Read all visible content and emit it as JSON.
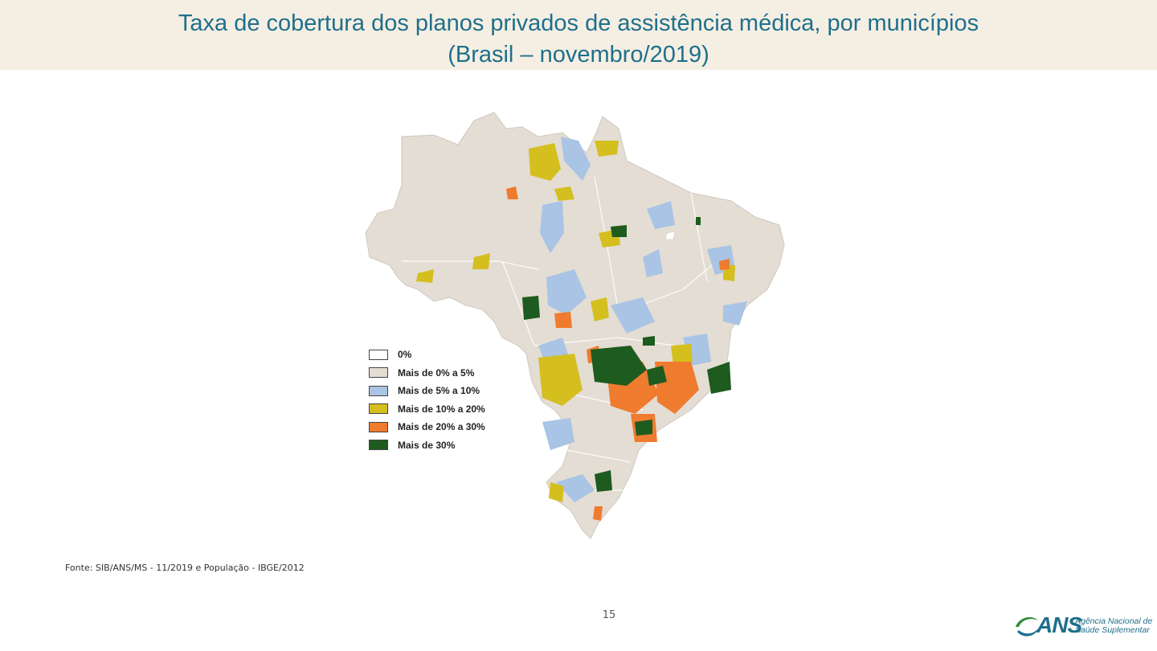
{
  "title": {
    "line1": "Taxa de cobertura dos planos privados de assistência médica, por municípios",
    "line2": "(Brasil – novembro/2019)"
  },
  "legend": {
    "items": [
      {
        "label": "0%",
        "color": "#ffffff"
      },
      {
        "label": "Mais de 0% a 5%",
        "color": "#e3ddd4"
      },
      {
        "label": "Mais de 5% a 10%",
        "color": "#a9c4e4"
      },
      {
        "label": "Mais de 10% a 20%",
        "color": "#d4bf1f"
      },
      {
        "label": "Mais de 20% a 30%",
        "color": "#ef7b2f"
      },
      {
        "label": "Mais de 30%",
        "color": "#1e5b1e"
      }
    ]
  },
  "source": "Fonte: SIB/ANS/MS - 11/2019 e População - IBGE/2012",
  "page_number": "15",
  "logo": {
    "name": "ANS",
    "line1": "Agência Nacional de",
    "line2": "Saúde Suplementar",
    "colors": {
      "primary": "#1f6f8b",
      "accent": "#2e8b3a"
    }
  },
  "colors": {
    "title": "#1f6f8b",
    "title_band": "#f5efe3",
    "map_base": "#e3ddd4"
  }
}
